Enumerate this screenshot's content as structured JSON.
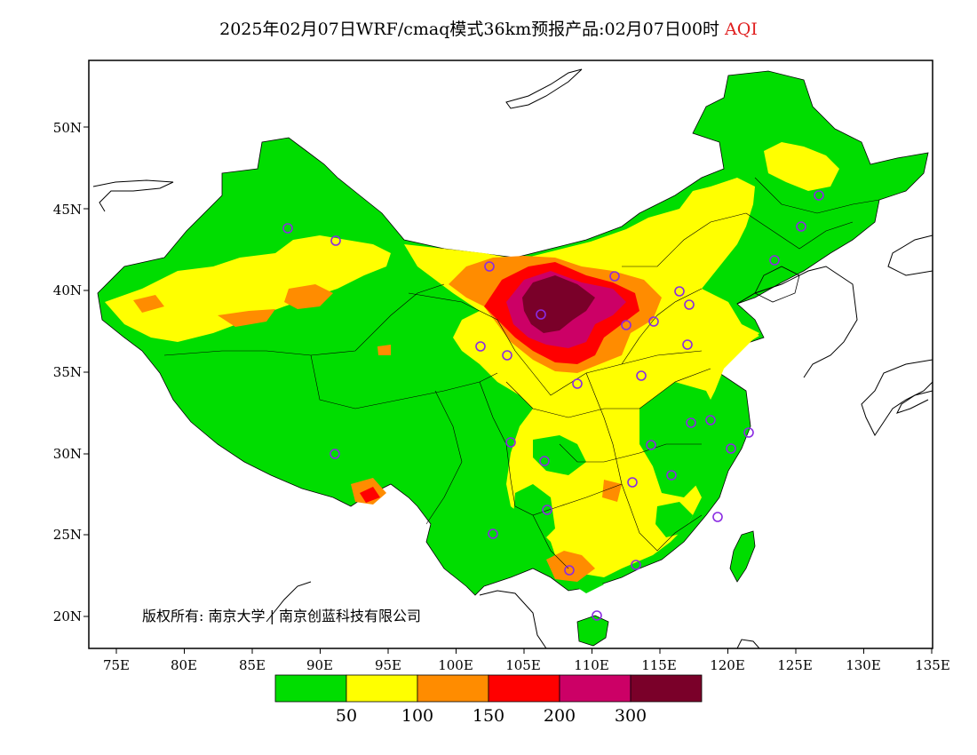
{
  "title": {
    "text": "2025年02月07日WRF/cmaq模式36km预报产品:02月07日00时",
    "variable": "AQI"
  },
  "axes": {
    "lat_ticks": [
      "50N",
      "45N",
      "40N",
      "35N",
      "30N",
      "25N",
      "20N"
    ],
    "lon_ticks": [
      "75E",
      "80E",
      "85E",
      "90E",
      "95E",
      "100E",
      "105E",
      "110E",
      "115E",
      "120E",
      "125E",
      "130E",
      "135E"
    ]
  },
  "colors": {
    "good": "#00dd00",
    "moderate": "#ffff00",
    "usg": "#ff8c00",
    "unhealthy": "#ff0000",
    "very_unhealthy": "#cc0066",
    "hazardous": "#7a0029",
    "station": "#8a2be2"
  },
  "legend": {
    "labels": [
      "50",
      "100",
      "150",
      "200",
      "300"
    ],
    "colors": [
      "#00dd00",
      "#ffff00",
      "#ff8c00",
      "#ff0000",
      "#cc0066",
      "#7a0029"
    ]
  },
  "copyright": "版权所有: 南京大学 | 南京创蓝科技有限公司"
}
